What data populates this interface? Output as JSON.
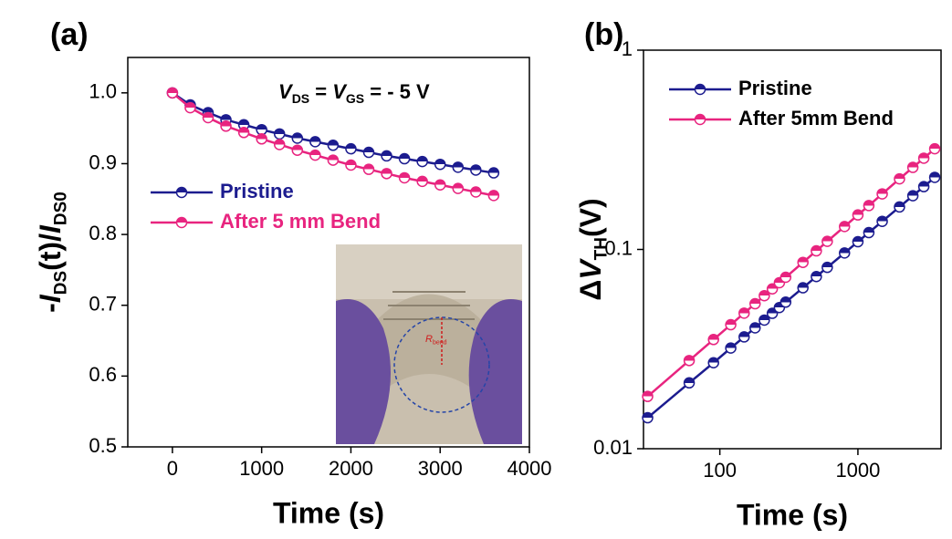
{
  "chart_data": [
    {
      "type": "line",
      "panel_label": "(a)",
      "annotation": [
        "V",
        "DS",
        " = ",
        "V",
        "GS",
        " = - 5 V"
      ],
      "x_label": "Time (s)",
      "y_label": [
        "-",
        "I",
        "DS",
        "(t)/",
        "I",
        "DS0"
      ],
      "inset_label": [
        "R",
        "bend"
      ],
      "x": [
        0,
        200,
        400,
        600,
        800,
        1000,
        1200,
        1400,
        1600,
        1800,
        2000,
        2200,
        2400,
        2600,
        2800,
        3000,
        3200,
        3400,
        3600
      ],
      "series": [
        {
          "name": "Pristine",
          "color": "#1c1c8f",
          "values": [
            1.0,
            0.983,
            0.972,
            0.962,
            0.955,
            0.948,
            0.942,
            0.936,
            0.931,
            0.926,
            0.921,
            0.916,
            0.911,
            0.907,
            0.903,
            0.899,
            0.895,
            0.891,
            0.887
          ]
        },
        {
          "name": "After 5 mm Bend",
          "color": "#e8247f",
          "values": [
            1.0,
            0.979,
            0.965,
            0.953,
            0.944,
            0.935,
            0.927,
            0.919,
            0.912,
            0.905,
            0.898,
            0.892,
            0.886,
            0.88,
            0.875,
            0.87,
            0.865,
            0.86,
            0.855
          ]
        }
      ],
      "xlim": [
        -500,
        4000
      ],
      "xticks": [
        0,
        1000,
        2000,
        3000,
        4000
      ],
      "ylim": [
        0.5,
        1.05
      ],
      "yticks": [
        0.5,
        0.6,
        0.7,
        0.8,
        0.9,
        {
          "value": 1.0,
          "label": "1.0"
        }
      ]
    },
    {
      "type": "line",
      "panel_label": "(b)",
      "x_label": "Time (s)",
      "y_label": [
        "Δ",
        "V",
        "TH",
        "(V)"
      ],
      "x": [
        30,
        60,
        90,
        120,
        150,
        180,
        210,
        240,
        270,
        300,
        400,
        500,
        600,
        800,
        1000,
        1200,
        1500,
        2000,
        2500,
        3000,
        3600
      ],
      "series": [
        {
          "name": "Pristine",
          "color": "#1c1c8f",
          "values": [
            0.0143,
            0.0214,
            0.027,
            0.032,
            0.0364,
            0.0404,
            0.0442,
            0.0478,
            0.0511,
            0.0544,
            0.0642,
            0.0731,
            0.0813,
            0.096,
            0.1093,
            0.1215,
            0.1383,
            0.1634,
            0.186,
            0.2066,
            0.23
          ]
        },
        {
          "name": "After 5mm Bend",
          "color": "#e8247f",
          "values": [
            0.0183,
            0.0277,
            0.0353,
            0.0419,
            0.0479,
            0.0534,
            0.0586,
            0.0634,
            0.0681,
            0.0725,
            0.0861,
            0.0984,
            0.1098,
            0.1303,
            0.149,
            0.166,
            0.19,
            0.226,
            0.258,
            0.287,
            0.32
          ]
        }
      ],
      "xscale": "log",
      "yscale": "log",
      "xlim": [
        28,
        4000
      ],
      "xticks": [
        100,
        1000
      ],
      "ylim": [
        0.01,
        1
      ],
      "yticks": [
        0.01,
        0.1,
        1
      ]
    }
  ]
}
